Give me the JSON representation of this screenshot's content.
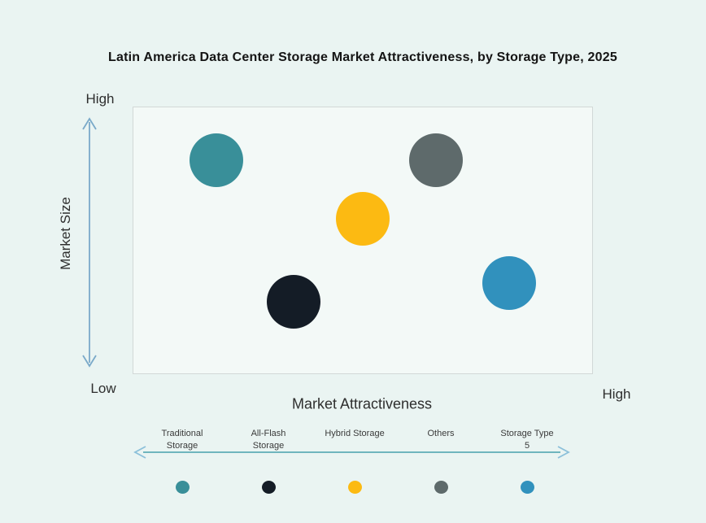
{
  "title": "Latin America Data Center Storage Market Attractiveness,  by Storage Type, 2025",
  "colors": {
    "background": "#eaf4f2",
    "plot_bg": "#f3f9f7",
    "plot_border": "#d2d8d7",
    "axis_arrow": "#7aa9c9",
    "legend_arrow_line": "#46a0ad",
    "legend_arrow_head": "#8cc0da",
    "title_text": "#141414",
    "axis_text": "#2e2e2e",
    "legend_text": "#3a3a3a"
  },
  "axes": {
    "y_label": "Market Size",
    "y_high": "High",
    "y_low": "Low",
    "x_label": "Market Attractiveness",
    "x_high": "High"
  },
  "chart_data": {
    "type": "scatter",
    "subtype": "bubble",
    "title": "Latin America Data Center Storage Market Attractiveness,  by Storage Type, 2025",
    "xlabel": "Market Attractiveness",
    "ylabel": "Market Size",
    "xlim": [
      0,
      100
    ],
    "ylim": [
      0,
      100
    ],
    "x_axis_qualitative": [
      "Low",
      "High"
    ],
    "y_axis_qualitative": [
      "Low",
      "High"
    ],
    "grid": false,
    "legend_position": "bottom",
    "bubble_radius_px": 33,
    "points": [
      {
        "name": "Traditional Storage",
        "x": 18,
        "y": 80,
        "color": "#398f99"
      },
      {
        "name": "All-Flash Storage",
        "x": 35,
        "y": 27,
        "color": "#141c26"
      },
      {
        "name": "Hybrid Storage",
        "x": 50,
        "y": 58,
        "color": "#fcba12"
      },
      {
        "name": "Others",
        "x": 66,
        "y": 80,
        "color": "#5e6a6b"
      },
      {
        "name": "Storage Type 5",
        "x": 82,
        "y": 34,
        "color": "#3191bd"
      }
    ]
  },
  "legend": {
    "items": [
      {
        "label_lines": [
          "Traditional",
          "Storage"
        ],
        "color": "#398f99"
      },
      {
        "label_lines": [
          "All-Flash",
          "Storage"
        ],
        "color": "#141c26"
      },
      {
        "label_lines": [
          "Hybrid Storage"
        ],
        "color": "#fcba12"
      },
      {
        "label_lines": [
          "Others"
        ],
        "color": "#5e6a6b"
      },
      {
        "label_lines": [
          "Storage Type",
          "5"
        ],
        "color": "#3191bd"
      }
    ]
  }
}
